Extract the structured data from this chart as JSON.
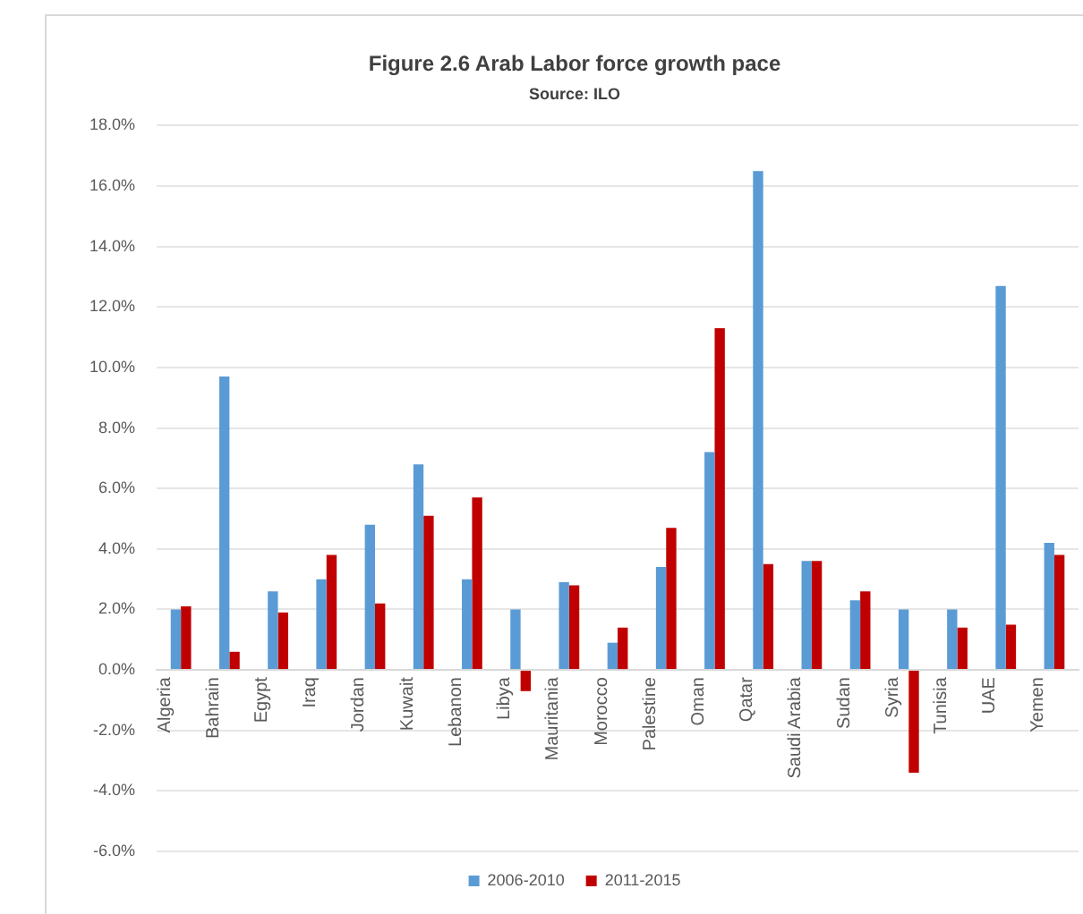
{
  "chart_data": {
    "type": "bar",
    "title": "Figure 2.6 Arab Labor force growth pace",
    "annotations": [
      "Source: ILO"
    ],
    "categories": [
      "Algeria",
      "Bahrain",
      "Egypt",
      "Iraq",
      "Jordan",
      "Kuwait",
      "Lebanon",
      "Libya",
      "Mauritania",
      "Morocco",
      "Palestine",
      "Oman",
      "Qatar",
      "Saudi Arabia",
      "Sudan",
      "Syria",
      "Tunisia",
      "UAE",
      "Yemen"
    ],
    "series": [
      {
        "name": "2006-2010",
        "color": "#5b9bd5",
        "values": [
          2.0,
          9.7,
          2.6,
          3.0,
          4.8,
          6.8,
          3.0,
          2.0,
          2.9,
          0.9,
          3.4,
          7.2,
          16.5,
          3.6,
          2.3,
          2.0,
          2.0,
          12.7,
          4.2
        ]
      },
      {
        "name": "2011-2015",
        "color": "#c00000",
        "values": [
          2.1,
          0.6,
          1.9,
          3.8,
          2.2,
          5.1,
          5.7,
          -0.7,
          2.8,
          1.4,
          4.7,
          11.3,
          3.5,
          3.6,
          2.6,
          -3.4,
          1.4,
          1.5,
          3.8
        ]
      }
    ],
    "ylim": [
      -6,
      18
    ],
    "yticks": [
      {
        "value": -6,
        "label": "-6.0%"
      },
      {
        "value": -4,
        "label": "-4.0%"
      },
      {
        "value": -2,
        "label": "-2.0%"
      },
      {
        "value": 0,
        "label": "0.0%"
      },
      {
        "value": 2,
        "label": "2.0%"
      },
      {
        "value": 4,
        "label": "4.0%"
      },
      {
        "value": 6,
        "label": "6.0%"
      },
      {
        "value": 8,
        "label": "8.0%"
      },
      {
        "value": 10,
        "label": "10.0%"
      },
      {
        "value": 12,
        "label": "12.0%"
      },
      {
        "value": 14,
        "label": "14.0%"
      },
      {
        "value": 16,
        "label": "16.0%"
      },
      {
        "value": 18,
        "label": "18.0%"
      }
    ],
    "grid": "y",
    "legend": "bottom"
  }
}
